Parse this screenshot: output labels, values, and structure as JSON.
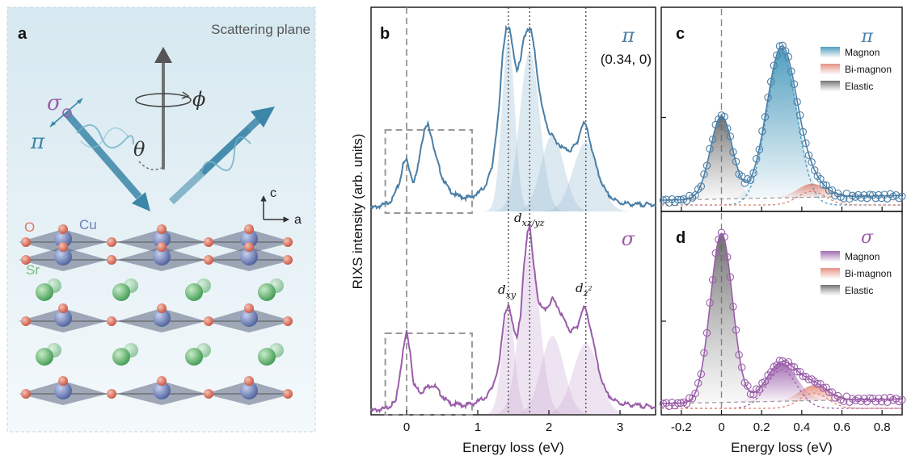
{
  "panel_a": {
    "label": "a",
    "scattering_plane": "Scattering plane",
    "symbols": {
      "sigma": "σ",
      "pi": "π",
      "phi": "ϕ",
      "theta": "θ"
    },
    "axes": {
      "c": "c",
      "a": "a"
    },
    "atoms": {
      "o": "O",
      "cu": "Cu",
      "sr": "Sr"
    },
    "colors": {
      "o": "#e07a6a",
      "cu": "#7b8fc7",
      "sr": "#6fbf7a",
      "beam": "#3c86a8"
    }
  },
  "panel_b": {
    "label": "b"
  },
  "panel_c": {
    "label": "c"
  },
  "panel_d": {
    "label": "d"
  },
  "chart_data": [
    {
      "type": "line",
      "panel": "b",
      "xlabel": "Energy loss (eV)",
      "ylabel": "RIXS intensity (arb. units)",
      "xlim": [
        -0.5,
        3.5
      ],
      "xticks": [
        0,
        1,
        2,
        3
      ],
      "vlines": [
        0,
        1.43,
        1.73,
        2.52
      ],
      "annotations": {
        "pi_pol": "π",
        "q": "(0.34, 0)",
        "sigma_pol": "σ"
      },
      "orbital_labels": {
        "dxy": [
          "d",
          "xy"
        ],
        "dxz": [
          "d",
          "xz/yz"
        ],
        "dz2": [
          "d",
          "z",
          "2"
        ]
      },
      "series": [
        {
          "name": "π",
          "color": "#4a7ea6",
          "x": [
            -0.5,
            -0.4,
            -0.3,
            -0.2,
            -0.1,
            -0.05,
            0,
            0.05,
            0.1,
            0.15,
            0.2,
            0.25,
            0.3,
            0.35,
            0.4,
            0.5,
            0.6,
            0.7,
            0.8,
            0.9,
            1.0,
            1.1,
            1.2,
            1.3,
            1.35,
            1.4,
            1.45,
            1.5,
            1.55,
            1.6,
            1.65,
            1.7,
            1.75,
            1.8,
            1.85,
            1.9,
            2.0,
            2.1,
            2.2,
            2.3,
            2.4,
            2.45,
            2.5,
            2.55,
            2.6,
            2.7,
            2.8,
            2.9,
            3.0,
            3.2,
            3.5
          ],
          "y": [
            0.0,
            0.01,
            0.02,
            0.05,
            0.14,
            0.24,
            0.27,
            0.2,
            0.14,
            0.21,
            0.34,
            0.43,
            0.46,
            0.4,
            0.3,
            0.17,
            0.1,
            0.07,
            0.06,
            0.06,
            0.08,
            0.12,
            0.22,
            0.55,
            0.85,
            1.0,
            0.98,
            0.86,
            0.76,
            0.81,
            0.94,
            0.99,
            0.98,
            0.86,
            0.7,
            0.56,
            0.42,
            0.37,
            0.33,
            0.32,
            0.36,
            0.44,
            0.47,
            0.42,
            0.33,
            0.18,
            0.09,
            0.05,
            0.03,
            0.02,
            0.02
          ]
        },
        {
          "name": "σ",
          "color": "#9a5ea9",
          "x": [
            -0.5,
            -0.3,
            -0.15,
            -0.05,
            0,
            0.05,
            0.1,
            0.2,
            0.3,
            0.35,
            0.4,
            0.5,
            0.6,
            0.8,
            0.95,
            1.1,
            1.2,
            1.3,
            1.38,
            1.43,
            1.5,
            1.55,
            1.6,
            1.65,
            1.7,
            1.73,
            1.78,
            1.85,
            1.9,
            1.95,
            2.0,
            2.05,
            2.1,
            2.2,
            2.3,
            2.4,
            2.45,
            2.5,
            2.55,
            2.6,
            2.7,
            2.8,
            2.9,
            3.0,
            3.2,
            3.5
          ],
          "y": [
            0.0,
            0.01,
            0.05,
            0.32,
            0.43,
            0.32,
            0.14,
            0.1,
            0.13,
            0.14,
            0.13,
            0.08,
            0.04,
            0.03,
            0.04,
            0.07,
            0.12,
            0.25,
            0.53,
            0.57,
            0.45,
            0.4,
            0.5,
            0.78,
            0.97,
            1.0,
            0.8,
            0.6,
            0.55,
            0.55,
            0.57,
            0.6,
            0.58,
            0.5,
            0.43,
            0.45,
            0.52,
            0.56,
            0.5,
            0.42,
            0.22,
            0.1,
            0.06,
            0.04,
            0.03,
            0.02
          ]
        }
      ]
    },
    {
      "type": "scatter",
      "panel": "c",
      "xlabel": "Energy loss (eV)",
      "xlim": [
        -0.3,
        0.9
      ],
      "xticks": [
        -0.2,
        0,
        0.2,
        0.4,
        0.6,
        0.8
      ],
      "polarization": "π",
      "legend": [
        "Magnon",
        "Bi-magnon",
        "Elastic"
      ],
      "series": [
        {
          "name": "Magnon",
          "color": "#4a9ec0",
          "center": 0.3,
          "height": 0.78
        },
        {
          "name": "Bi-magnon",
          "color": "#e08070",
          "center": 0.45,
          "height": 0.07
        },
        {
          "name": "Elastic",
          "color": "#666666",
          "center": 0.0,
          "height": 0.43
        }
      ]
    },
    {
      "type": "scatter",
      "panel": "d",
      "xlabel": "Energy loss (eV)",
      "xlim": [
        -0.3,
        0.9
      ],
      "xticks": [
        -0.2,
        0,
        0.2,
        0.4,
        0.6,
        0.8
      ],
      "polarization": "σ",
      "legend": [
        "Magnon",
        "Bi-magnon",
        "Elastic"
      ],
      "series": [
        {
          "name": "Magnon",
          "color": "#9a5ea9",
          "center": 0.3,
          "height": 0.2
        },
        {
          "name": "Bi-magnon",
          "color": "#e08070",
          "center": 0.46,
          "height": 0.08
        },
        {
          "name": "Elastic",
          "color": "#666666",
          "center": 0.0,
          "height": 0.88
        }
      ]
    }
  ]
}
